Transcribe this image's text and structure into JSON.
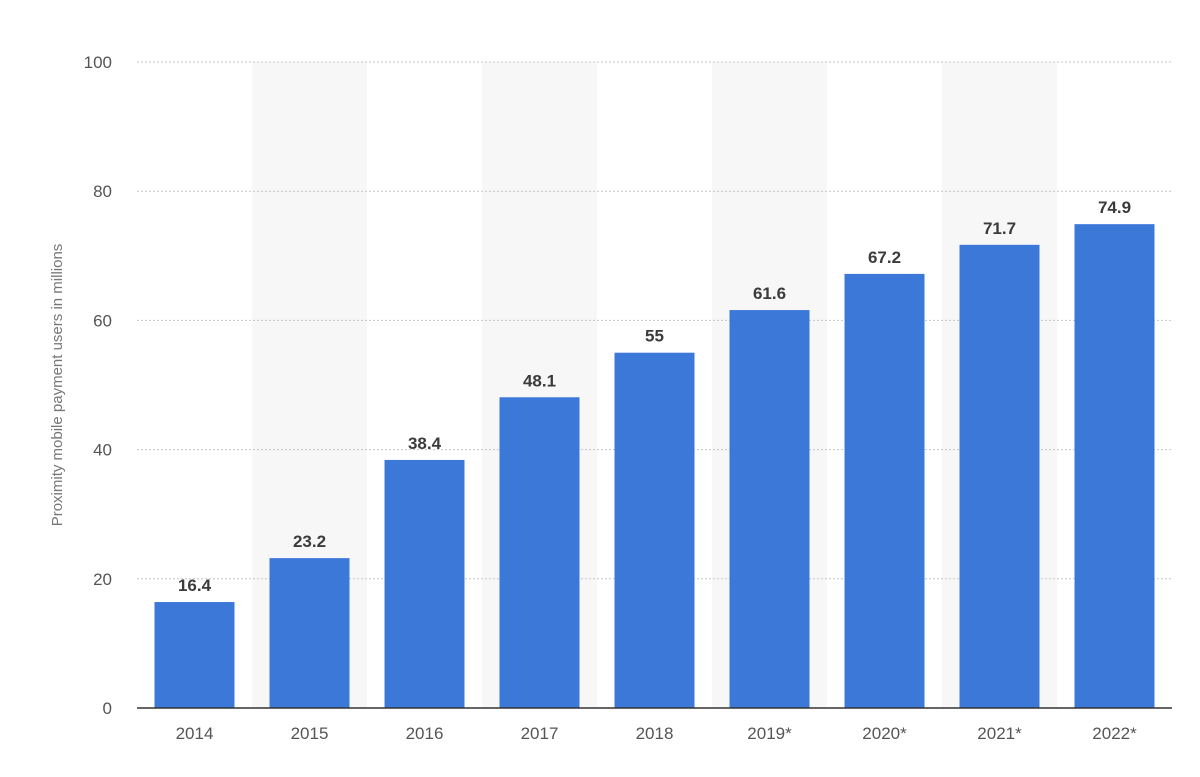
{
  "chart_data": {
    "type": "bar",
    "categories": [
      "2014",
      "2015",
      "2016",
      "2017",
      "2018",
      "2019*",
      "2020*",
      "2021*",
      "2022*"
    ],
    "values": [
      16.4,
      23.2,
      38.4,
      48.1,
      55,
      61.6,
      67.2,
      71.7,
      74.9
    ],
    "value_labels": [
      "16.4",
      "23.2",
      "38.4",
      "48.1",
      "55",
      "61.6",
      "67.2",
      "71.7",
      "74.9"
    ],
    "title": "",
    "xlabel": "",
    "ylabel": "Proximity mobile payment users in millions",
    "ylim": [
      0,
      100
    ],
    "yticks": [
      0,
      20,
      40,
      60,
      80,
      100
    ],
    "grid": true,
    "colors": {
      "bar": "#3c78d8",
      "band": "#f7f7f8",
      "grid": "#c6c6c6"
    }
  }
}
